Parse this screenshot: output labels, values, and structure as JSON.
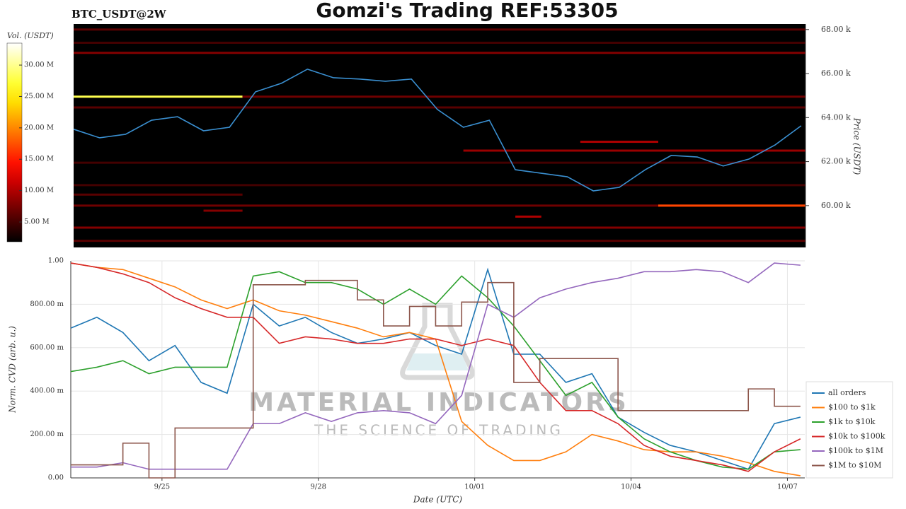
{
  "chart_data": [
    {
      "type": "heatmap",
      "title": "Gomzi's Trading REF:53305",
      "subtitle": "BTC_USDT@2W",
      "y2label": "Price (USDT)",
      "xlim": [
        "9/23 06:00",
        "10/07 08:00"
      ],
      "y2lim": [
        58.1,
        68.25
      ],
      "y2ticks": [
        {
          "value": 60,
          "label": "60.00 k"
        },
        {
          "value": 62,
          "label": "62.00 k"
        },
        {
          "value": 64,
          "label": "64.00 k"
        },
        {
          "value": 66,
          "label": "66.00 k"
        },
        {
          "value": 68,
          "label": "68.00 k"
        }
      ],
      "colorbar": {
        "label": "Vol. (USDT)",
        "colormap": "hot",
        "lim": [
          1.85,
          33.5
        ],
        "ticks": [
          {
            "value": 5,
            "label": "5.00 M"
          },
          {
            "value": 10,
            "label": "10.00 M"
          },
          {
            "value": 15,
            "label": "15.00 M"
          },
          {
            "value": 20,
            "label": "20.00 M"
          },
          {
            "value": 25,
            "label": "25.00 M"
          },
          {
            "value": 30,
            "label": "30.00 M"
          }
        ]
      },
      "bands": [
        {
          "price": 68.0,
          "start": "9/23 06:00",
          "end": "10/07 08:00",
          "volume": 6
        },
        {
          "price": 67.4,
          "start": "9/23 06:00",
          "end": "10/07 08:00",
          "volume": 5
        },
        {
          "price": 66.94,
          "start": "9/23 06:00",
          "end": "10/07 08:00",
          "volume": 8
        },
        {
          "price": 64.95,
          "start": "9/23 06:00",
          "end": "9/26 12:00",
          "volume": 28
        },
        {
          "price": 64.95,
          "start": "9/26 12:00",
          "end": "10/07 08:00",
          "volume": 7
        },
        {
          "price": 64.46,
          "start": "9/23 06:00",
          "end": "10/07 08:00",
          "volume": 6
        },
        {
          "price": 62.9,
          "start": "10/03 00:00",
          "end": "10/04 12:00",
          "volume": 10
        },
        {
          "price": 62.5,
          "start": "9/30 18:00",
          "end": "10/07 08:00",
          "volume": 9
        },
        {
          "price": 61.95,
          "start": "9/23 06:00",
          "end": "10/07 08:00",
          "volume": 5
        },
        {
          "price": 60.93,
          "start": "9/23 06:00",
          "end": "10/07 08:00",
          "volume": 5
        },
        {
          "price": 60.5,
          "start": "9/23 06:00",
          "end": "9/26 12:00",
          "volume": 6
        },
        {
          "price": 60.0,
          "start": "9/23 06:00",
          "end": "10/07 08:00",
          "volume": 7
        },
        {
          "price": 60.0,
          "start": "10/04 12:00",
          "end": "10/07 08:00",
          "volume": 17
        },
        {
          "price": 59.77,
          "start": "9/25 18:00",
          "end": "9/26 12:00",
          "volume": 8
        },
        {
          "price": 59.5,
          "start": "10/01 18:00",
          "end": "10/02 06:00",
          "volume": 10
        },
        {
          "price": 59.0,
          "start": "9/23 06:00",
          "end": "10/07 08:00",
          "volume": 8
        },
        {
          "price": 58.4,
          "start": "9/23 06:00",
          "end": "10/07 08:00",
          "volume": 6
        }
      ],
      "x": [
        "9/23 06:00",
        "9/23 18:00",
        "9/24 06:00",
        "9/24 18:00",
        "9/25 06:00",
        "9/25 18:00",
        "9/26 06:00",
        "9/26 18:00",
        "9/27 06:00",
        "9/27 18:00",
        "9/28 06:00",
        "9/28 18:00",
        "9/29 06:00",
        "9/29 18:00",
        "9/30 06:00",
        "9/30 18:00",
        "10/01 06:00",
        "10/01 18:00",
        "10/02 06:00",
        "10/02 18:00",
        "10/03 06:00",
        "10/03 18:00",
        "10/04 06:00",
        "10/04 18:00",
        "10/05 06:00",
        "10/05 18:00",
        "10/06 06:00",
        "10/06 18:00",
        "10/07 06:00"
      ],
      "series": [
        {
          "color": "#3a8fd0",
          "axis": "y2",
          "values": [
            63.47,
            63.08,
            63.24,
            63.88,
            64.04,
            63.4,
            63.56,
            65.17,
            65.56,
            66.2,
            65.81,
            65.75,
            65.65,
            65.75,
            64.37,
            63.56,
            63.88,
            61.63,
            61.47,
            61.31,
            60.67,
            60.83,
            61.63,
            62.28,
            62.21,
            61.8,
            62.12,
            62.76,
            63.63
          ]
        }
      ]
    },
    {
      "type": "line",
      "xlabel": "Date (UTC)",
      "ylabel": "Norm. CVD (arb. u.)",
      "grid": true,
      "legend": "lower right",
      "watermark": [
        "MATERIAL INDICATORS",
        "THE SCIENCE OF TRADING"
      ],
      "xlim": [
        "9/23 06:00",
        "10/07 08:00"
      ],
      "xticks": [
        "9/25",
        "9/28",
        "10/01",
        "10/04",
        "10/07"
      ],
      "ylim": [
        0,
        1
      ],
      "yticks": [
        {
          "value": 0,
          "label": "0.00"
        },
        {
          "value": 0.2,
          "label": "200.00 m"
        },
        {
          "value": 0.4,
          "label": "400.00 m"
        },
        {
          "value": 0.6,
          "label": "600.00 m"
        },
        {
          "value": 0.8,
          "label": "800.00 m"
        },
        {
          "value": 1,
          "label": "1.00"
        }
      ],
      "x": [
        "9/23 06:00",
        "9/23 18:00",
        "9/24 06:00",
        "9/24 18:00",
        "9/25 06:00",
        "9/25 18:00",
        "9/26 06:00",
        "9/26 18:00",
        "9/27 06:00",
        "9/27 18:00",
        "9/28 06:00",
        "9/28 18:00",
        "9/29 06:00",
        "9/29 18:00",
        "9/30 06:00",
        "9/30 18:00",
        "10/01 06:00",
        "10/01 18:00",
        "10/02 06:00",
        "10/02 18:00",
        "10/03 06:00",
        "10/03 18:00",
        "10/04 06:00",
        "10/04 18:00",
        "10/05 06:00",
        "10/05 18:00",
        "10/06 06:00",
        "10/06 18:00",
        "10/07 06:00"
      ],
      "series": [
        {
          "name": "all orders",
          "color": "#1f77b4",
          "values": [
            0.69,
            0.74,
            0.67,
            0.54,
            0.61,
            0.44,
            0.39,
            0.8,
            0.7,
            0.74,
            0.67,
            0.62,
            0.64,
            0.67,
            0.61,
            0.57,
            0.96,
            0.57,
            0.57,
            0.44,
            0.48,
            0.28,
            0.21,
            0.15,
            0.12,
            0.08,
            0.04,
            0.25,
            0.28
          ]
        },
        {
          "name": "$100 to $1k",
          "color": "#ff7f0e",
          "values": [
            0.99,
            0.97,
            0.96,
            0.92,
            0.88,
            0.82,
            0.78,
            0.82,
            0.77,
            0.75,
            0.72,
            0.69,
            0.65,
            0.67,
            0.64,
            0.26,
            0.15,
            0.08,
            0.08,
            0.12,
            0.2,
            0.17,
            0.13,
            0.12,
            0.12,
            0.1,
            0.07,
            0.03,
            0.01
          ]
        },
        {
          "name": "$1k to $10k",
          "color": "#2ca02c",
          "values": [
            0.49,
            0.51,
            0.54,
            0.48,
            0.51,
            0.51,
            0.51,
            0.93,
            0.95,
            0.9,
            0.9,
            0.87,
            0.8,
            0.87,
            0.8,
            0.93,
            0.83,
            0.7,
            0.54,
            0.38,
            0.44,
            0.28,
            0.18,
            0.12,
            0.08,
            0.05,
            0.04,
            0.12,
            0.13
          ]
        },
        {
          "name": "$10k to $100k",
          "color": "#d62728",
          "values": [
            0.99,
            0.97,
            0.94,
            0.9,
            0.83,
            0.78,
            0.74,
            0.74,
            0.62,
            0.65,
            0.64,
            0.62,
            0.62,
            0.64,
            0.64,
            0.61,
            0.64,
            0.61,
            0.44,
            0.31,
            0.31,
            0.25,
            0.15,
            0.1,
            0.08,
            0.06,
            0.03,
            0.12,
            0.18
          ]
        },
        {
          "name": "$100k to $1M",
          "color": "#9467bd",
          "values": [
            0.05,
            0.05,
            0.07,
            0.04,
            0.04,
            0.04,
            0.04,
            0.25,
            0.25,
            0.3,
            0.26,
            0.3,
            0.31,
            0.3,
            0.25,
            0.38,
            0.8,
            0.74,
            0.83,
            0.87,
            0.9,
            0.92,
            0.95,
            0.95,
            0.96,
            0.95,
            0.9,
            0.99,
            0.98
          ]
        },
        {
          "name": "$1M to $10M",
          "color": "#8c564b",
          "step": true,
          "values": [
            0.06,
            0.06,
            0.16,
            0,
            0.23,
            0.23,
            0.23,
            0.89,
            0.89,
            0.91,
            0.91,
            0.82,
            0.7,
            0.79,
            0.7,
            0.81,
            0.9,
            0.44,
            0.55,
            0.55,
            0.55,
            0.31,
            0.31,
            0.31,
            0.31,
            0.31,
            0.41,
            0.33,
            0.33
          ]
        }
      ]
    }
  ]
}
